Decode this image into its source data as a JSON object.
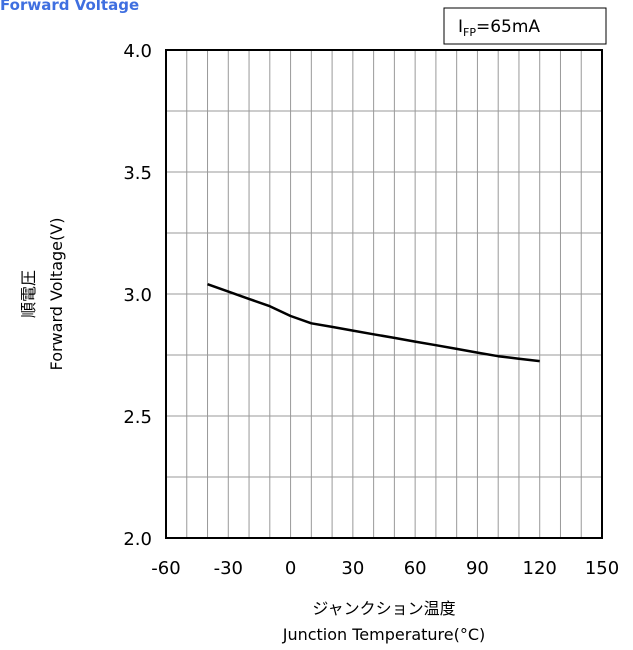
{
  "chart_data": {
    "type": "line",
    "title": "Forward Voltage",
    "condition": {
      "prefix": "I",
      "subscript": "FP",
      "suffix": "=65mA"
    },
    "xlabel_ja": "ジャンクション温度",
    "xlabel": "Junction Temperature(°C)",
    "ylabel_ja": "順電圧",
    "ylabel": "Forward Voltage(V)",
    "xlim": [
      -60,
      150
    ],
    "ylim": [
      2.0,
      4.0
    ],
    "x_ticks": [
      -60,
      -30,
      0,
      30,
      60,
      90,
      120,
      150
    ],
    "y_ticks": [
      "2.0",
      "2.5",
      "3.0",
      "3.5",
      "4.0"
    ],
    "x_minor_step": 10,
    "y_minor_step": 0.25,
    "grid": true,
    "series": [
      {
        "x": [
          -40,
          -30,
          -20,
          -10,
          0,
          10,
          20,
          30,
          40,
          50,
          60,
          70,
          80,
          90,
          100,
          110,
          120
        ],
        "y": [
          3.04,
          3.01,
          2.98,
          2.95,
          2.91,
          2.88,
          2.865,
          2.85,
          2.835,
          2.82,
          2.805,
          2.79,
          2.775,
          2.76,
          2.745,
          2.735,
          2.725
        ]
      }
    ]
  }
}
